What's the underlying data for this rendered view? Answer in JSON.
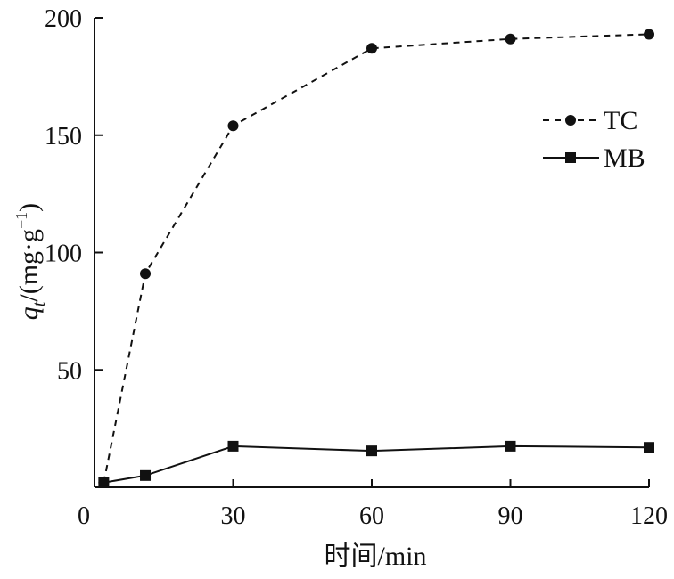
{
  "chart_data": {
    "type": "line",
    "x": [
      2,
      11,
      30,
      60,
      90,
      120
    ],
    "series": [
      {
        "name": "TC",
        "values": [
          2,
          91,
          154,
          187,
          191,
          193
        ],
        "line_style": "dashed",
        "marker": "circle",
        "color": "#111111"
      },
      {
        "name": "MB",
        "values": [
          2,
          5,
          17.5,
          15.5,
          17.5,
          17
        ],
        "line_style": "solid",
        "marker": "square",
        "color": "#111111"
      }
    ],
    "x_ticks": [
      0,
      30,
      60,
      90,
      120
    ],
    "y_ticks": [
      50,
      100,
      150,
      200
    ],
    "xlim": [
      0,
      120
    ],
    "ylim": [
      0,
      200
    ],
    "xlabel": "时间/min",
    "ylabel": {
      "q": "q",
      "sub": "t",
      "unit": "/(mg·g",
      "sup": "−1",
      "close": ")"
    },
    "grid": false,
    "legend_position": "top-right"
  }
}
